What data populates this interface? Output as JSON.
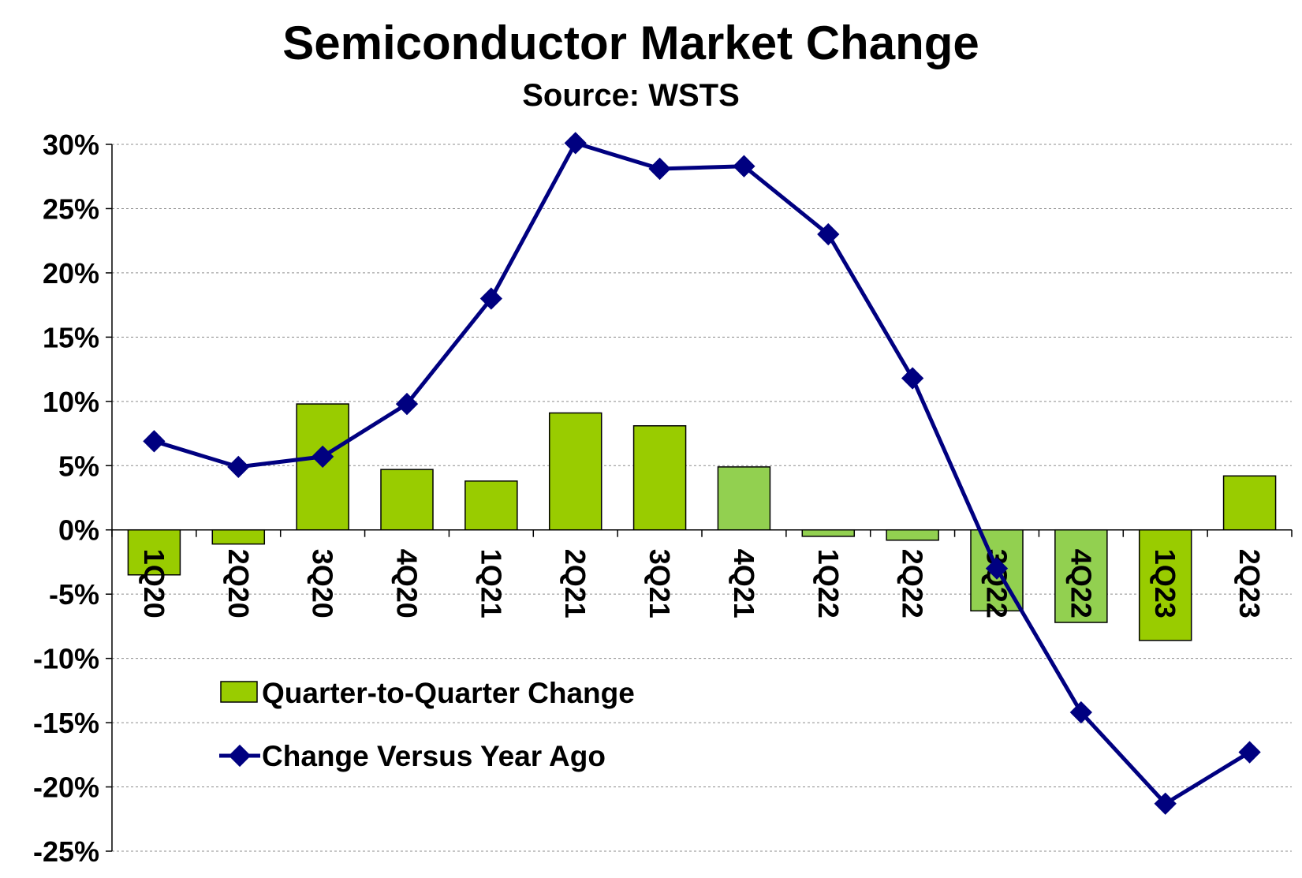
{
  "chart_data": {
    "type": "bar",
    "title": "Semiconductor Market Change",
    "subtitle": "Source: WSTS",
    "categories": [
      "1Q20",
      "2Q20",
      "3Q20",
      "4Q20",
      "1Q21",
      "2Q21",
      "3Q21",
      "4Q21",
      "1Q22",
      "2Q22",
      "3Q22",
      "4Q22",
      "1Q23",
      "2Q23"
    ],
    "ylim": [
      -25,
      30
    ],
    "yticks": [
      30,
      25,
      20,
      15,
      10,
      5,
      0,
      -5,
      -10,
      -15,
      -20,
      -25
    ],
    "ytick_labels": [
      "30%",
      "25%",
      "20%",
      "15%",
      "10%",
      "5%",
      "0%",
      "-5%",
      "-10%",
      "-15%",
      "-20%",
      "-25%"
    ],
    "grid": true,
    "legend_position": "lower-left",
    "series": [
      {
        "name": "Quarter-to-Quarter Change",
        "type": "bar",
        "values": [
          -3.5,
          -1.1,
          9.8,
          4.7,
          3.8,
          9.1,
          8.1,
          4.9,
          -0.5,
          -0.8,
          -6.3,
          -7.2,
          -8.6,
          4.2
        ],
        "colors": [
          "#99cc00",
          "#99cc00",
          "#99cc00",
          "#99cc00",
          "#99cc00",
          "#99cc00",
          "#99cc00",
          "#92d050",
          "#92d050",
          "#92d050",
          "#92d050",
          "#92d050",
          "#99cc00",
          "#99cc00"
        ]
      },
      {
        "name": "Change Versus Year Ago",
        "type": "line",
        "color": "#000080",
        "values": [
          6.9,
          4.9,
          5.7,
          9.8,
          18.0,
          30.1,
          28.1,
          28.3,
          23.0,
          11.8,
          -3.0,
          -14.2,
          -21.3,
          -17.3
        ]
      }
    ]
  }
}
